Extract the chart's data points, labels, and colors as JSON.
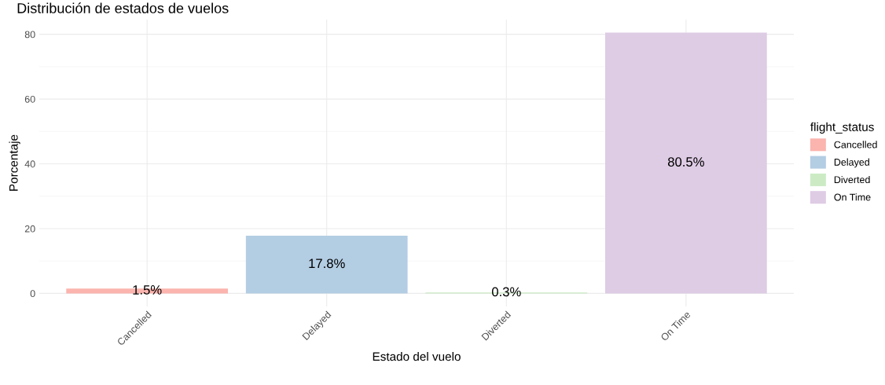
{
  "chart_data": {
    "type": "bar",
    "title": "Distribución de estados de vuelos",
    "xlabel": "Estado del vuelo",
    "ylabel": "Porcentaje",
    "legend_title": "flight_status",
    "categories": [
      "Cancelled",
      "Delayed",
      "Diverted",
      "On Time"
    ],
    "series": [
      {
        "name": "Cancelled",
        "color": "#fbb4ae",
        "values": [
          1.5,
          null,
          null,
          null
        ],
        "value_labels": [
          "1.5%",
          null,
          null,
          null
        ]
      },
      {
        "name": "Delayed",
        "color": "#b3cde3",
        "values": [
          null,
          17.8,
          null,
          null
        ],
        "value_labels": [
          null,
          "17.8%",
          null,
          null
        ]
      },
      {
        "name": "Diverted",
        "color": "#ccebc5",
        "values": [
          null,
          null,
          0.3,
          null
        ],
        "value_labels": [
          null,
          null,
          "0.3%",
          null
        ]
      },
      {
        "name": "On Time",
        "color": "#decbe4",
        "values": [
          null,
          null,
          null,
          80.5
        ],
        "value_labels": [
          null,
          null,
          null,
          "80.5%"
        ]
      }
    ],
    "ylim": [
      -4.025,
      84.525
    ],
    "yticks": [
      0,
      20,
      40,
      60,
      80
    ],
    "grid": true,
    "legend": "right"
  }
}
